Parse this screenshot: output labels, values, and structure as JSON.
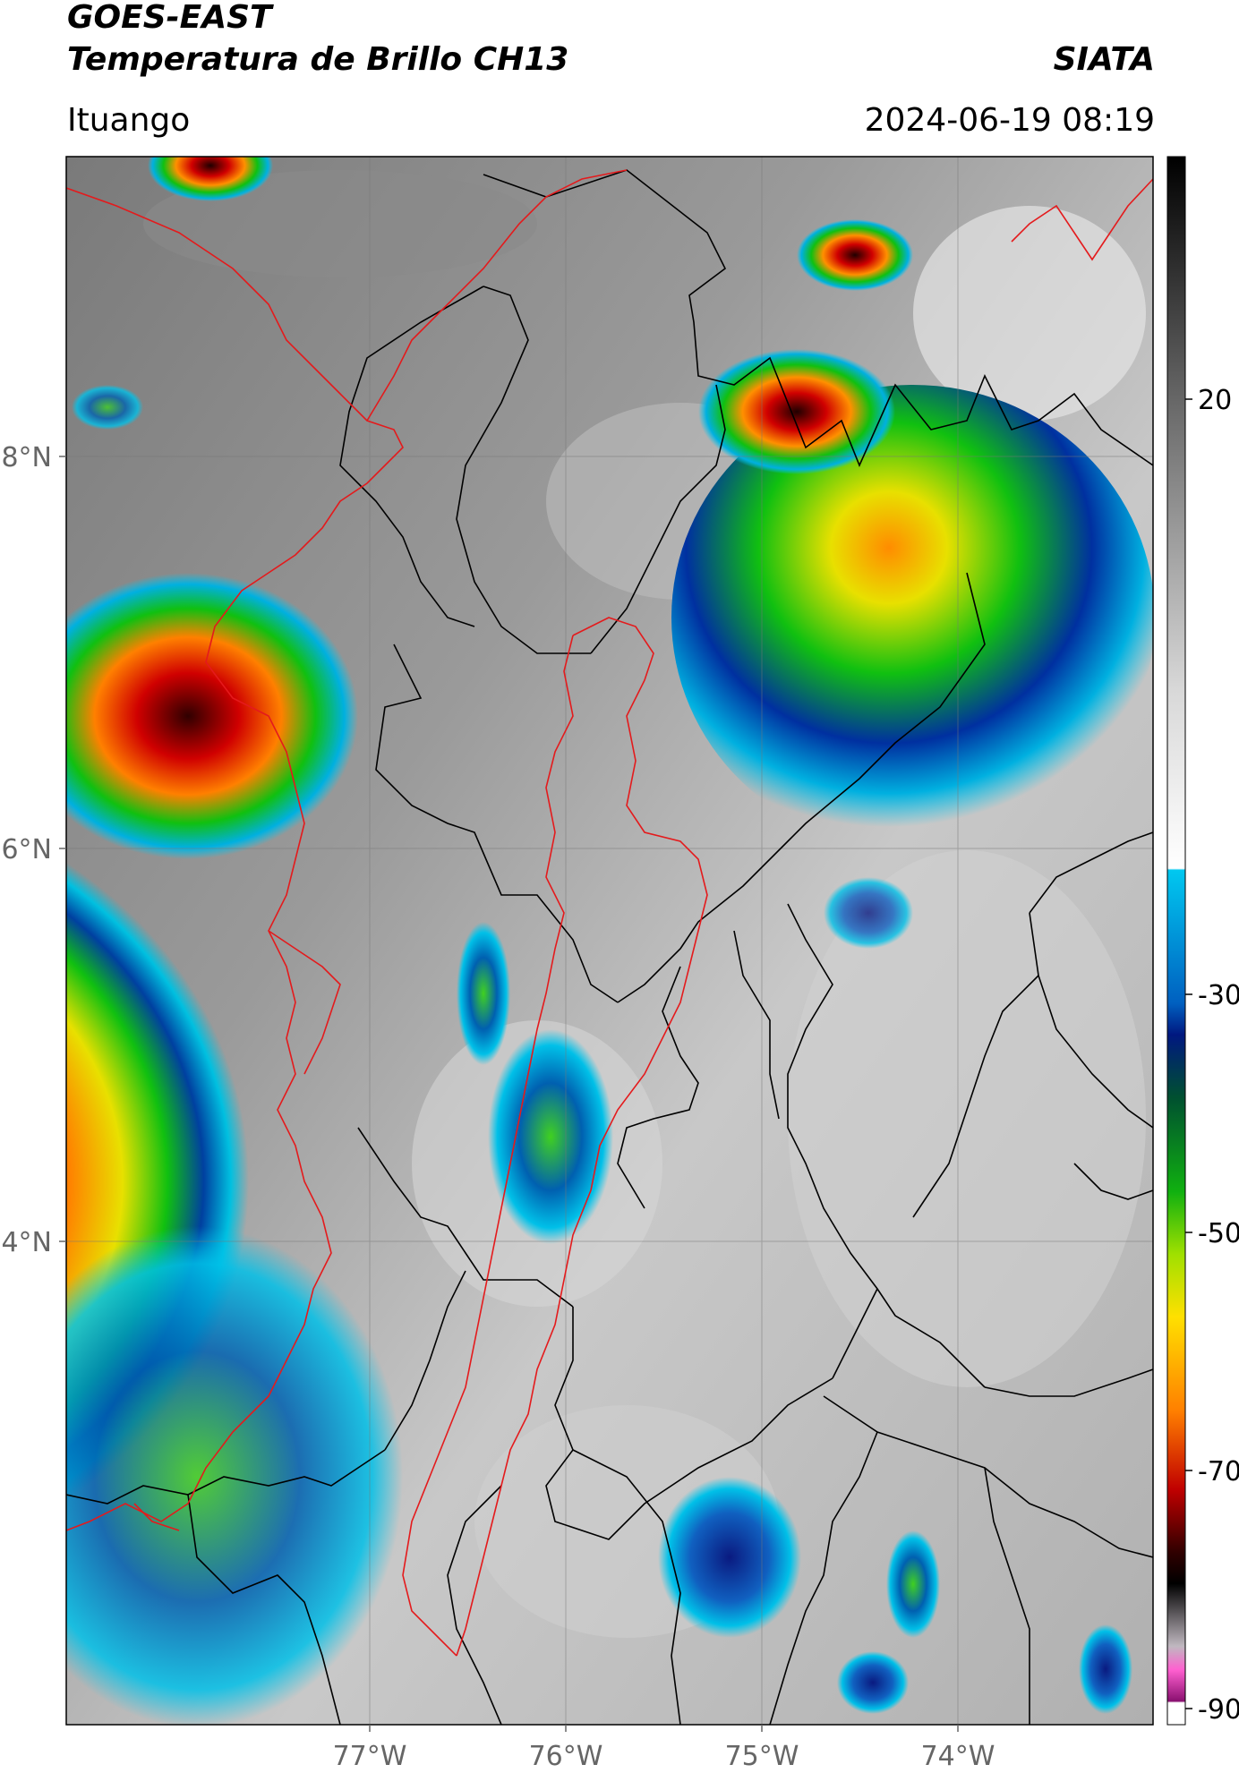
{
  "header": {
    "satellite": "GOES-EAST",
    "product": "Temperatura de Brillo CH13",
    "brand": "SIATA",
    "region": "Ituango",
    "timestamp": "2024-06-19 08:19"
  },
  "map": {
    "lat_labels": [
      "8°N",
      "6°N",
      "4°N"
    ],
    "lon_labels": [
      "77°W",
      "76°W",
      "75°W",
      "74°W"
    ],
    "boundary_colors": {
      "department": "#000000",
      "basin": "#e41a1c"
    }
  },
  "colorbar": {
    "labels": [
      "20",
      "-30",
      "-50",
      "-70",
      "-90"
    ],
    "colors": [
      "#000000",
      "#5a5a5a",
      "#bdbdbd",
      "#ffffff",
      "#00c8f0",
      "#00208f",
      "#00a000",
      "#ffe000",
      "#ff7f00",
      "#c00000",
      "#200000",
      "#a0a0a0",
      "#ff60d0",
      "#8a1070",
      "#ffffff"
    ]
  }
}
